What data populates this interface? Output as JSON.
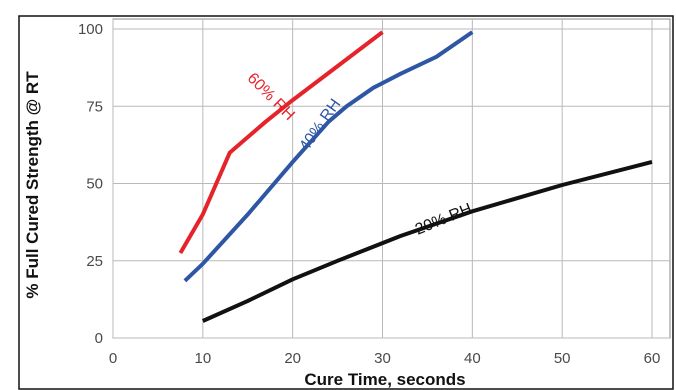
{
  "colors": {
    "series_60": "#e5232a",
    "series_40": "#2f56a4",
    "series_20": "#111111",
    "grid": "#b9b9b9"
  },
  "chart_data": {
    "type": "line",
    "xlabel": "Cure Time, seconds",
    "ylabel": "% Full Cured Strength @ RT",
    "xlim": [
      0,
      60
    ],
    "ylim": [
      0,
      100
    ],
    "x_ticks": [
      0,
      10,
      20,
      30,
      40,
      50,
      60
    ],
    "y_ticks": [
      0,
      25,
      50,
      75,
      100
    ],
    "grid": true,
    "legend": "none (series labelled inline on the curves)",
    "series": [
      {
        "name": "60% RH",
        "color": "#e5232a",
        "x": [
          7.5,
          10,
          13,
          17,
          20,
          25,
          30
        ],
        "y": [
          27.5,
          40,
          60,
          70,
          77,
          88,
          99
        ]
      },
      {
        "name": "40% RH",
        "color": "#2f56a4",
        "x": [
          8,
          10,
          15,
          20,
          24,
          26,
          29,
          32,
          36,
          40
        ],
        "y": [
          18.5,
          24,
          40,
          57,
          70,
          75,
          81,
          85.5,
          91,
          99
        ]
      },
      {
        "name": "20% RH",
        "color": "#111111",
        "x": [
          10,
          15,
          20,
          25,
          32,
          40,
          50,
          60
        ],
        "y": [
          5.5,
          12,
          19,
          25,
          33,
          41,
          49.5,
          57
        ]
      }
    ]
  }
}
